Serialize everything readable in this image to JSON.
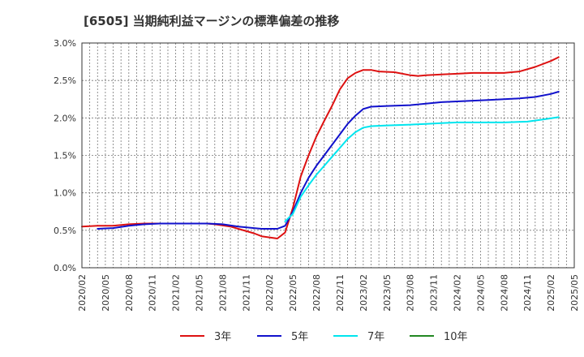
{
  "chart_data": {
    "type": "line",
    "title": "[6505]  当期純利益マージンの標準偏差の推移",
    "xlabel": "",
    "ylabel": "",
    "ylim": [
      0,
      3.0
    ],
    "yticks": [
      "0.0%",
      "0.5%",
      "1.0%",
      "1.5%",
      "2.0%",
      "2.5%",
      "3.0%"
    ],
    "ytick_values": [
      0,
      0.5,
      1.0,
      1.5,
      2.0,
      2.5,
      3.0
    ],
    "xticks": [
      "2020/02",
      "2020/05",
      "2020/08",
      "2020/11",
      "2021/02",
      "2021/05",
      "2021/08",
      "2021/11",
      "2022/02",
      "2022/05",
      "2022/08",
      "2022/11",
      "2023/02",
      "2023/05",
      "2023/08",
      "2023/11",
      "2024/02",
      "2024/05",
      "2024/08",
      "2024/11",
      "2025/02",
      "2025/05"
    ],
    "grid": true,
    "legend_position": "bottom",
    "series": [
      {
        "name": "3年",
        "color": "#dd1111",
        "points": [
          [
            "2020/02",
            0.55
          ],
          [
            "2020/04",
            0.56
          ],
          [
            "2020/06",
            0.56
          ],
          [
            "2020/08",
            0.58
          ],
          [
            "2020/10",
            0.59
          ],
          [
            "2020/12",
            0.59
          ],
          [
            "2021/02",
            0.59
          ],
          [
            "2021/04",
            0.59
          ],
          [
            "2021/06",
            0.59
          ],
          [
            "2021/07",
            0.58
          ],
          [
            "2021/09",
            0.55
          ],
          [
            "2021/10",
            0.52
          ],
          [
            "2021/12",
            0.46
          ],
          [
            "2022/01",
            0.42
          ],
          [
            "2022/03",
            0.39
          ],
          [
            "2022/04",
            0.47
          ],
          [
            "2022/05",
            0.8
          ],
          [
            "2022/06",
            1.22
          ],
          [
            "2022/07",
            1.5
          ],
          [
            "2022/08",
            1.75
          ],
          [
            "2022/09",
            1.96
          ],
          [
            "2022/10",
            2.16
          ],
          [
            "2022/11",
            2.38
          ],
          [
            "2022/12",
            2.53
          ],
          [
            "2023/01",
            2.6
          ],
          [
            "2023/02",
            2.64
          ],
          [
            "2023/03",
            2.64
          ],
          [
            "2023/04",
            2.62
          ],
          [
            "2023/06",
            2.61
          ],
          [
            "2023/08",
            2.57
          ],
          [
            "2023/09",
            2.56
          ],
          [
            "2023/10",
            2.57
          ],
          [
            "2023/12",
            2.58
          ],
          [
            "2024/02",
            2.59
          ],
          [
            "2024/04",
            2.6
          ],
          [
            "2024/08",
            2.6
          ],
          [
            "2024/10",
            2.62
          ],
          [
            "2024/12",
            2.68
          ],
          [
            "2025/02",
            2.76
          ],
          [
            "2025/03",
            2.81
          ]
        ]
      },
      {
        "name": "5年",
        "color": "#1111cc",
        "points": [
          [
            "2020/04",
            0.52
          ],
          [
            "2020/06",
            0.53
          ],
          [
            "2020/08",
            0.56
          ],
          [
            "2020/10",
            0.58
          ],
          [
            "2020/12",
            0.59
          ],
          [
            "2021/02",
            0.59
          ],
          [
            "2021/04",
            0.59
          ],
          [
            "2021/06",
            0.59
          ],
          [
            "2021/08",
            0.58
          ],
          [
            "2021/10",
            0.55
          ],
          [
            "2021/12",
            0.53
          ],
          [
            "2022/01",
            0.52
          ],
          [
            "2022/03",
            0.52
          ],
          [
            "2022/04",
            0.56
          ],
          [
            "2022/05",
            0.75
          ],
          [
            "2022/06",
            1.0
          ],
          [
            "2022/07",
            1.2
          ],
          [
            "2022/08",
            1.36
          ],
          [
            "2022/09",
            1.5
          ],
          [
            "2022/10",
            1.64
          ],
          [
            "2022/11",
            1.78
          ],
          [
            "2022/12",
            1.92
          ],
          [
            "2023/01",
            2.03
          ],
          [
            "2023/02",
            2.12
          ],
          [
            "2023/03",
            2.15
          ],
          [
            "2023/05",
            2.16
          ],
          [
            "2023/08",
            2.17
          ],
          [
            "2023/10",
            2.19
          ],
          [
            "2023/12",
            2.21
          ],
          [
            "2024/02",
            2.22
          ],
          [
            "2024/06",
            2.24
          ],
          [
            "2024/08",
            2.25
          ],
          [
            "2024/10",
            2.26
          ],
          [
            "2024/12",
            2.28
          ],
          [
            "2025/02",
            2.32
          ],
          [
            "2025/03",
            2.35
          ]
        ]
      },
      {
        "name": "7年",
        "color": "#00e5ee",
        "points": [
          [
            "2022/04",
            0.62
          ],
          [
            "2022/05",
            0.72
          ],
          [
            "2022/06",
            0.95
          ],
          [
            "2022/07",
            1.1
          ],
          [
            "2022/08",
            1.24
          ],
          [
            "2022/09",
            1.36
          ],
          [
            "2022/10",
            1.48
          ],
          [
            "2022/11",
            1.6
          ],
          [
            "2022/12",
            1.72
          ],
          [
            "2023/01",
            1.81
          ],
          [
            "2023/02",
            1.87
          ],
          [
            "2023/03",
            1.89
          ],
          [
            "2023/05",
            1.9
          ],
          [
            "2023/08",
            1.91
          ],
          [
            "2023/10",
            1.92
          ],
          [
            "2023/12",
            1.93
          ],
          [
            "2024/02",
            1.94
          ],
          [
            "2024/06",
            1.94
          ],
          [
            "2024/08",
            1.94
          ],
          [
            "2024/11",
            1.95
          ],
          [
            "2025/01",
            1.98
          ],
          [
            "2025/03",
            2.01
          ]
        ]
      },
      {
        "name": "10年",
        "color": "#228822",
        "points": []
      }
    ]
  }
}
